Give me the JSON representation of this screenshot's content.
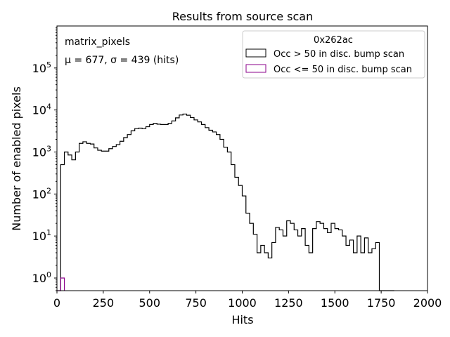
{
  "chart_data": {
    "type": "histogram",
    "title": "Results from source scan",
    "xlabel": "Hits",
    "ylabel": "Number of enabled pixels",
    "xlim": [
      0,
      2000
    ],
    "ylim": [
      0.5,
      1000000
    ],
    "yscale": "log",
    "bin_width": 20,
    "x_ticks": [
      0,
      250,
      500,
      750,
      1000,
      1250,
      1500,
      1750,
      2000
    ],
    "x_tick_labels": [
      "0",
      "250",
      "500",
      "750",
      "1000",
      "1250",
      "1500",
      "1750",
      "2000"
    ],
    "y_tick_exponents": [
      0,
      1,
      2,
      3,
      4,
      5
    ],
    "y_tick_base": "10",
    "annotations": [
      "matrix_pixels",
      "μ = 677, σ = 439 (hits)"
    ],
    "legend": {
      "title": "0x262ac",
      "placement": "top-right",
      "entries": [
        "Occ > 50 in disc. bump scan",
        "Occ <= 50 in disc. bump scan"
      ]
    },
    "series": [
      {
        "name": "Occ > 50 in disc. bump scan",
        "color": "#000000",
        "bins_start": 20,
        "values": [
          500,
          1000,
          850,
          650,
          1000,
          1600,
          1750,
          1600,
          1550,
          1250,
          1100,
          1050,
          1050,
          1200,
          1350,
          1500,
          1800,
          2200,
          2600,
          3200,
          3600,
          3700,
          3600,
          4000,
          4500,
          4800,
          4600,
          4500,
          4500,
          4800,
          5500,
          6500,
          7600,
          8000,
          7500,
          6600,
          5800,
          5200,
          4500,
          3800,
          3300,
          3000,
          2600,
          2000,
          1300,
          1000,
          500,
          250,
          160,
          90,
          35,
          20,
          11,
          4,
          6,
          4,
          3,
          7,
          16,
          14,
          10,
          23,
          20,
          14,
          10,
          15,
          6,
          4,
          15,
          22,
          20,
          15,
          12,
          20,
          15,
          14,
          10,
          6,
          8,
          4,
          10,
          4,
          9,
          4,
          5,
          7,
          0.5,
          0.5,
          0.5,
          0.5
        ]
      },
      {
        "name": "Occ <= 50 in disc. bump scan",
        "color": "#8b008b",
        "bins_start": 0,
        "values": [
          0.5,
          1.0
        ]
      }
    ]
  }
}
